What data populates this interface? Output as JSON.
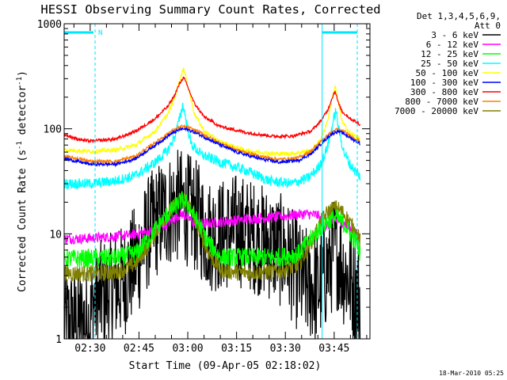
{
  "chart_data": {
    "type": "line",
    "title": "HESSI Observing Summary Count Rates, Corrected",
    "xlabel": "Start Time (09-Apr-05 02:18:02)",
    "ylabel_main": "Corrected Count Rate (s",
    "ylabel_sup1": "-1",
    "ylabel_mid": " detector",
    "ylabel_sup2": "-1",
    "ylabel_end": ")",
    "y_scale": "log",
    "ylim": [
      1,
      1000
    ],
    "xlim_minutes": [
      22,
      116
    ],
    "y_tick_labels": [
      {
        "v": 1,
        "label": "1"
      },
      {
        "v": 10,
        "label": "10"
      },
      {
        "v": 100,
        "label": "100"
      },
      {
        "v": 1000,
        "label": "1000"
      }
    ],
    "x_tick_labels": [
      {
        "t": 30,
        "label": "02:30"
      },
      {
        "t": 45,
        "label": "02:45"
      },
      {
        "t": 60,
        "label": "03:00"
      },
      {
        "t": 75,
        "label": "03:15"
      },
      {
        "t": 90,
        "label": "03:30"
      },
      {
        "t": 105,
        "label": "03:45"
      }
    ],
    "legend_header": [
      "Det 1,3,4,5,6,9,",
      "Att 0"
    ],
    "legend_position": "right",
    "flag_bars": [
      {
        "from": 22,
        "to": 31,
        "label": "N"
      },
      {
        "from": 101.3,
        "to": 112.1,
        "label": ""
      }
    ],
    "event_lines": [
      {
        "t": 31.5,
        "style": "dashed"
      },
      {
        "t": 101.3,
        "style": "solid"
      },
      {
        "t": 112.1,
        "style": "dashed"
      }
    ],
    "series": [
      {
        "name": "3 - 6 keV",
        "color": "#000000",
        "x": [
          22,
          25,
          30,
          31,
          34,
          40,
          45,
          48,
          51,
          55,
          58,
          60,
          63,
          66,
          70,
          75,
          80,
          85,
          90,
          95,
          100,
          102,
          104,
          105,
          106,
          108,
          110,
          112,
          113
        ],
        "y": [
          1.4,
          1.4,
          1.4,
          2.2,
          2.6,
          3.5,
          6.2,
          10.5,
          14,
          17.5,
          18.5,
          17,
          14,
          10,
          9.5,
          11,
          9.5,
          8,
          6.5,
          3.5,
          3,
          4,
          5.5,
          7.5,
          6.5,
          4.5,
          3.5,
          2.8,
          2.4
        ]
      },
      {
        "name": "6 - 12 keV",
        "color": "#ff00ff",
        "x": [
          22,
          28,
          35,
          42,
          48,
          53,
          56,
          58,
          60,
          62,
          65,
          70,
          78,
          88,
          96,
          100,
          102,
          104,
          105,
          106,
          108,
          110,
          112,
          113
        ],
        "y": [
          9,
          9,
          9.3,
          9.7,
          10.5,
          12,
          14,
          15.5,
          14.5,
          12.5,
          12.5,
          13,
          13.8,
          14.5,
          15.5,
          15,
          11.5,
          12.5,
          13.5,
          13.5,
          12.5,
          11,
          9.8,
          9
        ]
      },
      {
        "name": "12 - 25 keV",
        "color": "#00ff00",
        "x": [
          22,
          30,
          38,
          44,
          48,
          51,
          54,
          57,
          58.5,
          60,
          63,
          66,
          70,
          75,
          80,
          88,
          94,
          98,
          101,
          103,
          105,
          106,
          108,
          110,
          112,
          113
        ],
        "y": [
          5.8,
          5.8,
          5.9,
          6.5,
          9,
          12,
          15.5,
          19.5,
          21,
          19,
          13,
          8.5,
          6,
          6,
          6,
          6,
          6.5,
          9,
          11.5,
          13,
          14,
          14,
          12.5,
          10,
          8,
          6.5
        ]
      },
      {
        "name": "25 - 50 keV",
        "color": "#00ffff",
        "x": [
          22,
          30,
          38,
          44,
          50,
          54,
          56,
          57.5,
          58.5,
          59.5,
          61,
          64,
          70,
          78,
          85,
          92,
          97,
          100,
          102,
          103.5,
          104.5,
          105.5,
          106.5,
          108,
          110,
          112,
          113
        ],
        "y": [
          30,
          30,
          32,
          36,
          48,
          63,
          85,
          125,
          170,
          120,
          72,
          57,
          48,
          40,
          32,
          30,
          34,
          42,
          55,
          78,
          110,
          150,
          95,
          60,
          45,
          38,
          35
        ]
      },
      {
        "name": "50 - 100 keV",
        "color": "#ffff00",
        "x": [
          22,
          30,
          38,
          44,
          50,
          54,
          56,
          57.5,
          58.7,
          60,
          62,
          65,
          70,
          78,
          86,
          92,
          98,
          101,
          103,
          104.3,
          105.3,
          106.3,
          107.5,
          110,
          113
        ],
        "y": [
          63,
          61,
          63,
          70,
          95,
          140,
          200,
          290,
          380,
          260,
          140,
          95,
          75,
          62,
          58,
          58,
          62,
          80,
          120,
          190,
          255,
          175,
          115,
          90,
          80
        ]
      },
      {
        "name": "100 - 300 keV",
        "color": "#0000ff",
        "x": [
          22,
          30,
          38,
          44,
          50,
          55,
          58,
          60,
          63,
          68,
          75,
          82,
          88,
          94,
          98,
          101,
          104,
          106,
          108,
          110,
          113
        ],
        "y": [
          52,
          46,
          46,
          52,
          70,
          90,
          100,
          98,
          90,
          75,
          60,
          52,
          48,
          50,
          58,
          72,
          88,
          95,
          90,
          82,
          72
        ]
      },
      {
        "name": "300 - 800 keV",
        "color": "#ff0000",
        "x": [
          22,
          26,
          30,
          38,
          44,
          50,
          54,
          56,
          57.5,
          58.7,
          60,
          62,
          65,
          70,
          78,
          86,
          92,
          98,
          101,
          103,
          104.3,
          105.3,
          106.3,
          107.5,
          110,
          113
        ],
        "y": [
          88,
          80,
          76,
          80,
          95,
          125,
          165,
          210,
          270,
          310,
          250,
          175,
          130,
          105,
          92,
          85,
          85,
          95,
          120,
          150,
          195,
          230,
          175,
          145,
          125,
          110
        ]
      },
      {
        "name": "800 - 7000 keV",
        "color": "#ff8000",
        "x": [
          22,
          30,
          38,
          44,
          50,
          55,
          58,
          60,
          63,
          68,
          75,
          82,
          88,
          94,
          98,
          101,
          104,
          106,
          108,
          110,
          113
        ],
        "y": [
          55,
          49,
          49,
          55,
          74,
          95,
          105,
          103,
          95,
          78,
          63,
          55,
          51,
          53,
          62,
          76,
          92,
          99,
          94,
          86,
          76
        ]
      },
      {
        "name": "7000 - 20000 keV",
        "color": "#808000",
        "x": [
          22,
          30,
          38,
          44,
          48,
          51,
          54,
          57,
          58.5,
          60,
          63,
          66,
          70,
          75,
          80,
          88,
          94,
          98,
          101,
          103,
          105,
          106,
          108,
          110,
          112,
          113
        ],
        "y": [
          4.2,
          4.2,
          4.3,
          5.2,
          8,
          11.5,
          15.5,
          20,
          22,
          20,
          12,
          7,
          4.5,
          4.3,
          4.3,
          4.4,
          5,
          8.5,
          13,
          16,
          17.5,
          17.5,
          15.5,
          12.5,
          10,
          8.5
        ]
      }
    ],
    "footer_date": "18-Mar-2010 05:25"
  }
}
